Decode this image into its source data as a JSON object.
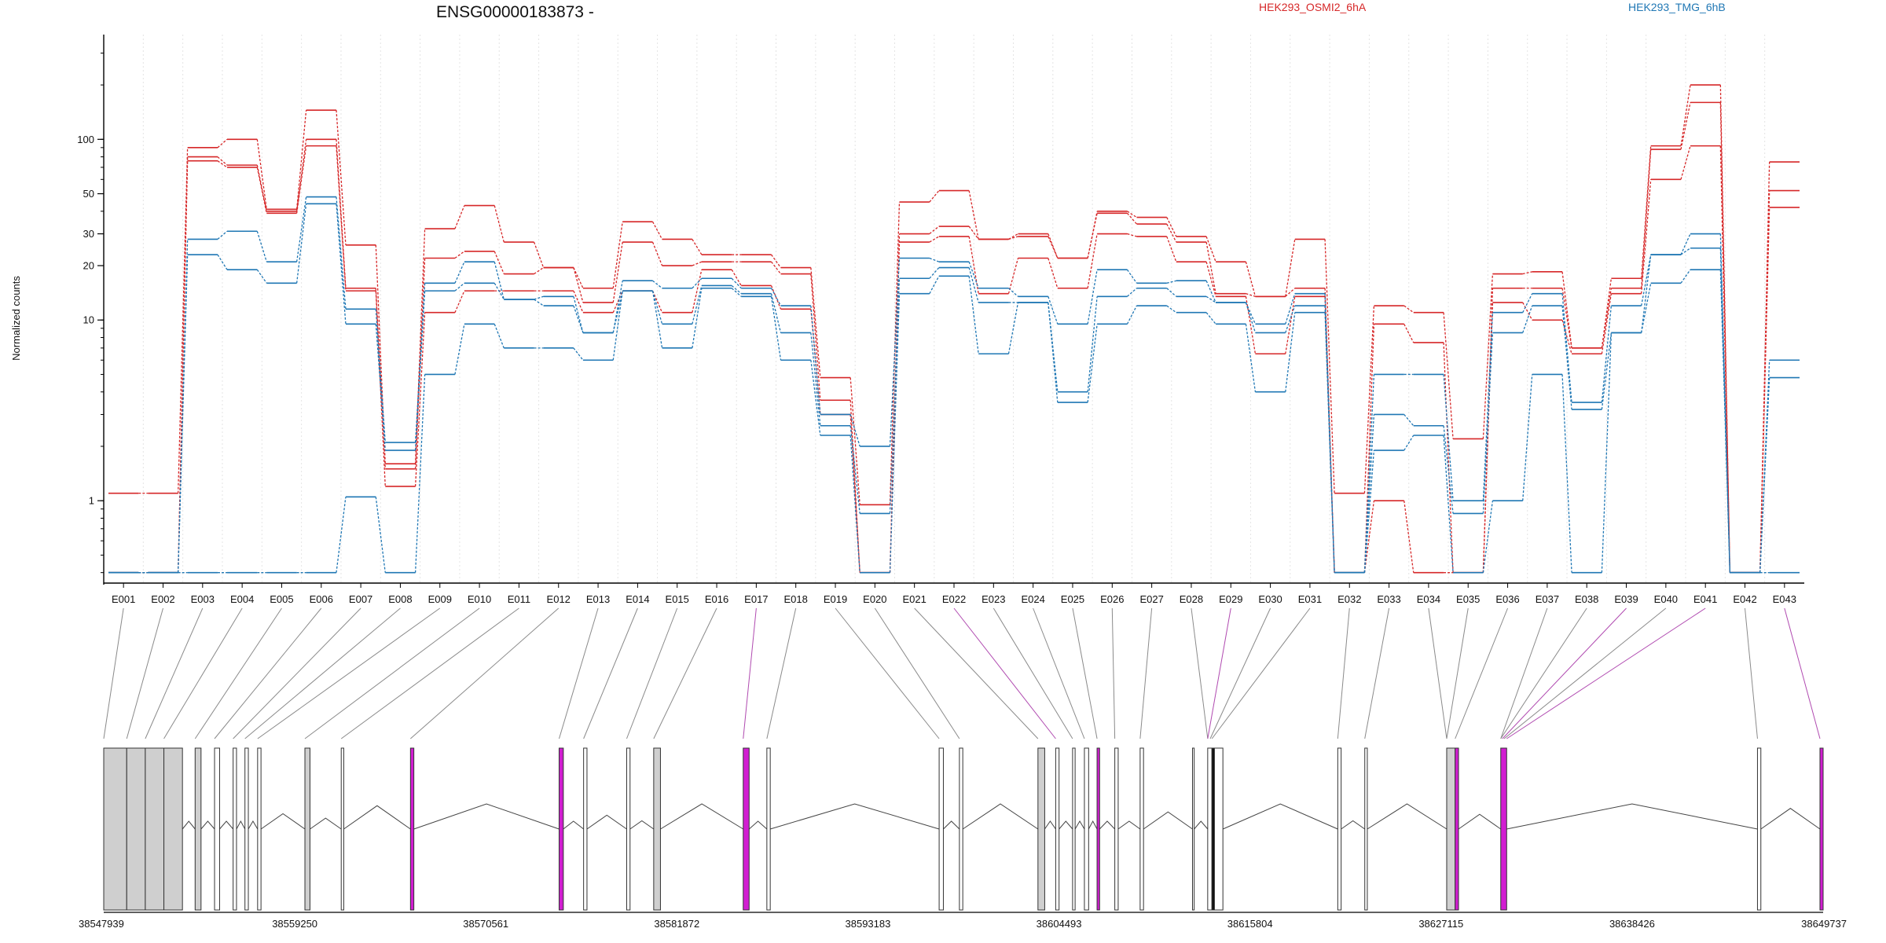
{
  "chart_data": {
    "type": "line",
    "title": "ENSG00000183873 -",
    "ylabel": "Normalized counts",
    "yscale": "log",
    "ylim": [
      0.35,
      380
    ],
    "yticks": [
      1,
      10,
      20,
      30,
      50,
      100
    ],
    "grid": "vertical dotted lines at exon bins",
    "legend_position": "top",
    "categories": [
      "E001",
      "E002",
      "E003",
      "E004",
      "E005",
      "E006",
      "E007",
      "E008",
      "E009",
      "E010",
      "E011",
      "E012",
      "E013",
      "E014",
      "E015",
      "E016",
      "E017",
      "E018",
      "E019",
      "E020",
      "E021",
      "E022",
      "E023",
      "E024",
      "E025",
      "E026",
      "E027",
      "E028",
      "E029",
      "E030",
      "E031",
      "E032",
      "E033",
      "E034",
      "E035",
      "E036",
      "E037",
      "E038",
      "E039",
      "E040",
      "E041",
      "E042",
      "E043"
    ],
    "groups": [
      {
        "name": "HEK293_OSMI2_6hA",
        "color": "#d62728"
      },
      {
        "name": "HEK293_TMG_6hB",
        "color": "#1f77b4"
      }
    ],
    "series": [
      {
        "group": "HEK293_OSMI2_6hA",
        "values": [
          1.1,
          1.1,
          90,
          100,
          41,
          145,
          26,
          1.6,
          32,
          43,
          27,
          19.5,
          15,
          35,
          28,
          23,
          23,
          19.5,
          4.8,
          0.95,
          45,
          52,
          28,
          30,
          22,
          40,
          37,
          29,
          21,
          13.5,
          28,
          1.1,
          12,
          11,
          2.2,
          18,
          18.5,
          7,
          17,
          92,
          200,
          0.4,
          75
        ]
      },
      {
        "group": "HEK293_OSMI2_6hA",
        "values": [
          0.4,
          0.4,
          80,
          72,
          40,
          100,
          15,
          1.5,
          22,
          24,
          18,
          19.5,
          12.5,
          27,
          20,
          21,
          21,
          18,
          3.6,
          0.4,
          30,
          33,
          28,
          29,
          22,
          39,
          34,
          27,
          14,
          13.5,
          15,
          0.4,
          9.5,
          7.5,
          0.4,
          15,
          15,
          7,
          15,
          88,
          160,
          0.4,
          52
        ]
      },
      {
        "group": "HEK293_OSMI2_6hA",
        "values": [
          0.4,
          0.4,
          76,
          70,
          39,
          92,
          14.5,
          1.2,
          11,
          14.5,
          14.5,
          14.5,
          11,
          14.5,
          11,
          19,
          15.5,
          11.5,
          3,
          0.4,
          27,
          29,
          14,
          22,
          15,
          30,
          29,
          21,
          13.5,
          6.5,
          13.5,
          0.4,
          1,
          0.4,
          0.4,
          12.5,
          10,
          6.5,
          14,
          60,
          92,
          0.4,
          42
        ]
      },
      {
        "group": "HEK293_TMG_6hB",
        "values": [
          0.4,
          0.4,
          28,
          31,
          21,
          48,
          11.5,
          2.1,
          16,
          21,
          13,
          13.5,
          8.5,
          16.5,
          15,
          17,
          15,
          12,
          3,
          2,
          22,
          21,
          15,
          13.5,
          9.5,
          19,
          16,
          16.5,
          12.5,
          9.5,
          14,
          0.4,
          5,
          5,
          1,
          11,
          14,
          3.5,
          12,
          23,
          30,
          0.4,
          6
        ]
      },
      {
        "group": "HEK293_TMG_6hB",
        "values": [
          0.4,
          0.4,
          23,
          19,
          16,
          44,
          9.5,
          1.9,
          14.5,
          16,
          13,
          12,
          8.5,
          14.5,
          9.5,
          15.5,
          14,
          8.5,
          2.6,
          0.85,
          17,
          19.5,
          12.5,
          12.5,
          4,
          13.5,
          15,
          13.5,
          12.5,
          8.5,
          12,
          0.4,
          3,
          2.6,
          0.85,
          8.5,
          12,
          3.2,
          8.5,
          23,
          25,
          0.4,
          4.8
        ]
      },
      {
        "group": "HEK293_TMG_6hB",
        "values": [
          0.4,
          0.4,
          0.4,
          0.4,
          0.4,
          0.4,
          1.05,
          0.4,
          5,
          9.5,
          7,
          7,
          6,
          14.5,
          7,
          15,
          13.5,
          6,
          2.3,
          0.4,
          14,
          17.5,
          6.5,
          12.5,
          3.5,
          9.5,
          12,
          11,
          9.5,
          4,
          11,
          0.4,
          1.9,
          2.3,
          0.4,
          1,
          5,
          0.4,
          8.5,
          16,
          19,
          0.4,
          0.4
        ]
      }
    ],
    "exon_track": {
      "xlim": [
        38547939,
        38649737
      ],
      "coord_labels": [
        "38547939",
        "38559250",
        "38570561",
        "38581872",
        "38593183",
        "38604493",
        "38615804",
        "38627115",
        "38638426",
        "38649737"
      ],
      "exons": [
        {
          "start": 38547939,
          "end": 38549300,
          "fill": "#cfcfcf"
        },
        {
          "start": 38549300,
          "end": 38550400,
          "fill": "#cfcfcf"
        },
        {
          "start": 38550400,
          "end": 38551500,
          "fill": "#cfcfcf"
        },
        {
          "start": 38551500,
          "end": 38552600,
          "fill": "#cfcfcf"
        },
        {
          "start": 38553350,
          "end": 38553700,
          "fill": "#cfcfcf"
        },
        {
          "start": 38554500,
          "end": 38554800,
          "fill": "#ffffff"
        },
        {
          "start": 38555600,
          "end": 38555800,
          "fill": "#ffffff"
        },
        {
          "start": 38556300,
          "end": 38556500,
          "fill": "#ffffff"
        },
        {
          "start": 38557050,
          "end": 38557250,
          "fill": "#ffffff"
        },
        {
          "start": 38559850,
          "end": 38560150,
          "fill": "#cfcfcf"
        },
        {
          "start": 38562000,
          "end": 38562150,
          "fill": "#ffffff"
        },
        {
          "start": 38566100,
          "end": 38566300,
          "fill": "#d11ed1"
        },
        {
          "start": 38574900,
          "end": 38575150,
          "fill": "#d11ed1"
        },
        {
          "start": 38576350,
          "end": 38576550,
          "fill": "#ffffff"
        },
        {
          "start": 38578900,
          "end": 38579100,
          "fill": "#ffffff"
        },
        {
          "start": 38580500,
          "end": 38580900,
          "fill": "#cfcfcf"
        },
        {
          "start": 38585800,
          "end": 38586150,
          "fill": "#d11ed1"
        },
        {
          "start": 38587200,
          "end": 38587400,
          "fill": "#ffffff"
        },
        {
          "start": 38597400,
          "end": 38597650,
          "fill": "#ffffff"
        },
        {
          "start": 38598600,
          "end": 38598800,
          "fill": "#ffffff"
        },
        {
          "start": 38603250,
          "end": 38603650,
          "fill": "#cfcfcf"
        },
        {
          "start": 38604300,
          "end": 38604500,
          "fill": "#ffffff"
        },
        {
          "start": 38605300,
          "end": 38605450,
          "fill": "#ffffff"
        },
        {
          "start": 38606000,
          "end": 38606250,
          "fill": "#ffffff"
        },
        {
          "start": 38606750,
          "end": 38606900,
          "fill": "#d11ed1"
        },
        {
          "start": 38607800,
          "end": 38608000,
          "fill": "#ffffff"
        },
        {
          "start": 38609300,
          "end": 38609500,
          "fill": "#ffffff"
        },
        {
          "start": 38612400,
          "end": 38612500,
          "fill": "#ffffff"
        },
        {
          "start": 38613300,
          "end": 38613550,
          "fill": "#ffffff"
        },
        {
          "start": 38613550,
          "end": 38613700,
          "fill": "#111111"
        },
        {
          "start": 38613700,
          "end": 38614200,
          "fill": "#ffffff"
        },
        {
          "start": 38621000,
          "end": 38621200,
          "fill": "#ffffff"
        },
        {
          "start": 38622600,
          "end": 38622750,
          "fill": "#ffffff"
        },
        {
          "start": 38627450,
          "end": 38627950,
          "fill": "#cfcfcf"
        },
        {
          "start": 38627950,
          "end": 38628150,
          "fill": "#d11ed1"
        },
        {
          "start": 38630650,
          "end": 38631000,
          "fill": "#d11ed1"
        },
        {
          "start": 38645850,
          "end": 38646050,
          "fill": "#ffffff"
        },
        {
          "start": 38649550,
          "end": 38649737,
          "fill": "#d11ed1"
        }
      ],
      "bin_starts": [
        38547939,
        38549300,
        38550400,
        38551500,
        38553350,
        38554500,
        38555600,
        38556300,
        38557050,
        38559850,
        38562000,
        38566100,
        38574900,
        38576350,
        38578900,
        38580500,
        38585800,
        38587200,
        38597400,
        38598600,
        38603250,
        38604300,
        38605300,
        38606000,
        38606750,
        38607800,
        38609300,
        38613300,
        38613300,
        38613450,
        38613550,
        38621000,
        38622600,
        38627450,
        38627450,
        38627950,
        38630650,
        38630650,
        38630750,
        38630850,
        38631000,
        38645850,
        38649550
      ],
      "magenta_bins": [
        "E017",
        "E022",
        "E029",
        "E039",
        "E041",
        "E043"
      ]
    }
  }
}
